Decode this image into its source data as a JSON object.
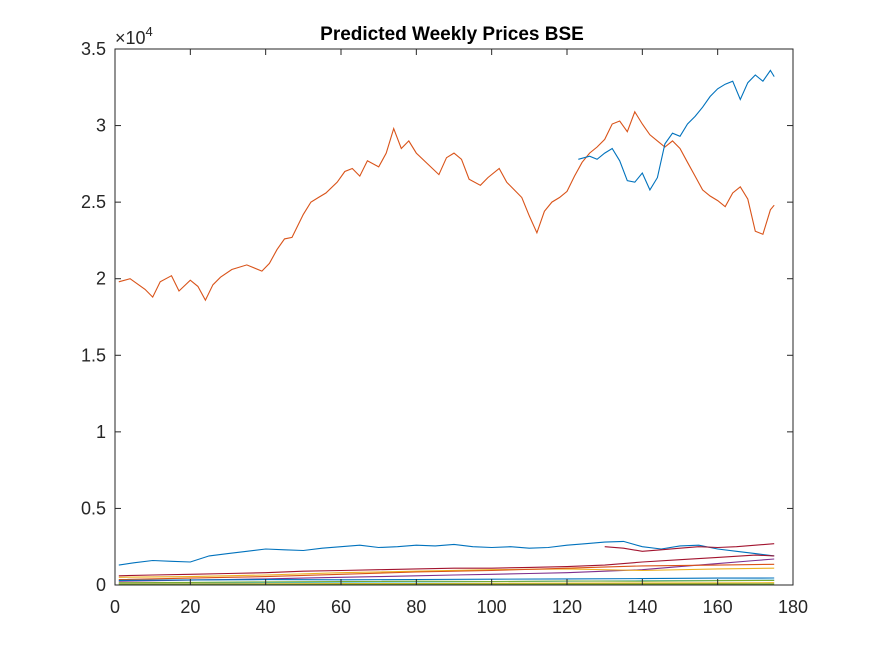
{
  "chart_data": {
    "type": "line",
    "title": "Predicted Weekly Prices BSE",
    "xlabel": "",
    "ylabel": "",
    "xlim": [
      0,
      180
    ],
    "ylim": [
      0,
      35000
    ],
    "x_ticks": [
      0,
      20,
      40,
      60,
      80,
      100,
      120,
      140,
      160,
      180
    ],
    "y_ticks": [
      0,
      5000,
      10000,
      15000,
      20000,
      25000,
      30000,
      35000
    ],
    "y_tick_labels": [
      "0",
      "0.5",
      "1",
      "1.5",
      "2",
      "2.5",
      "3",
      "3.5"
    ],
    "exponent_label": {
      "base": "×10",
      "power": "4"
    },
    "grid": false,
    "legend": "none",
    "series": [
      {
        "color": "#D95319",
        "x": [
          1,
          4,
          8,
          10,
          12,
          15,
          17,
          20,
          22,
          24,
          26,
          28,
          31,
          35,
          39,
          41,
          43,
          45,
          47,
          50,
          52,
          54,
          56,
          59,
          61,
          63,
          65,
          67,
          70,
          72,
          74,
          76,
          78,
          80,
          83,
          86,
          88,
          90,
          92,
          94,
          97,
          99,
          102,
          104,
          106,
          108,
          110,
          112,
          114,
          116,
          118,
          120,
          122,
          124,
          126,
          128,
          130,
          132,
          134,
          136,
          138,
          140,
          142,
          144,
          146,
          148,
          150,
          152,
          154,
          156,
          158,
          160,
          162,
          164,
          166,
          168,
          170,
          172,
          174,
          175
        ],
        "y": [
          19800,
          20000,
          19300,
          18800,
          19800,
          20200,
          19200,
          19900,
          19500,
          18600,
          19600,
          20100,
          20600,
          20900,
          20500,
          21000,
          21900,
          22600,
          22700,
          24200,
          25000,
          25300,
          25600,
          26300,
          27000,
          27200,
          26700,
          27700,
          27300,
          28200,
          29800,
          28500,
          29000,
          28200,
          27500,
          26800,
          27900,
          28200,
          27800,
          26500,
          26100,
          26600,
          27200,
          26300,
          25800,
          25300,
          24100,
          23000,
          24400,
          25000,
          25300,
          25700,
          26700,
          27600,
          28200,
          28600,
          29100,
          30100,
          30300,
          29600,
          30900,
          30100,
          29400,
          29000,
          28600,
          29000,
          28500,
          27600,
          26700,
          25800,
          25400,
          25100,
          24700,
          25600,
          26000,
          25200,
          23100,
          22900,
          24500,
          24800
        ]
      },
      {
        "color": "#0072BD",
        "x": [
          123,
          126,
          128,
          130,
          132,
          134,
          136,
          138,
          140,
          142,
          144,
          146,
          148,
          150,
          152,
          154,
          156,
          158,
          160,
          162,
          164,
          166,
          168,
          170,
          172,
          174,
          175
        ],
        "y": [
          27800,
          28000,
          27800,
          28200,
          28500,
          27700,
          26400,
          26300,
          26900,
          25800,
          26600,
          28800,
          29500,
          29300,
          30100,
          30600,
          31200,
          31900,
          32400,
          32700,
          32900,
          31700,
          32800,
          33300,
          32900,
          33600,
          33200
        ]
      },
      {
        "color": "#0072BD",
        "x": [
          1,
          5,
          10,
          15,
          20,
          25,
          30,
          35,
          40,
          45,
          50,
          55,
          60,
          65,
          70,
          75,
          80,
          85,
          90,
          95,
          100,
          105,
          110,
          115,
          120,
          125,
          130,
          135,
          140,
          145,
          150,
          155,
          160,
          165,
          170,
          175
        ],
        "y": [
          1300,
          1450,
          1600,
          1550,
          1500,
          1900,
          2050,
          2200,
          2350,
          2300,
          2250,
          2400,
          2500,
          2600,
          2450,
          2500,
          2600,
          2550,
          2650,
          2500,
          2450,
          2500,
          2400,
          2450,
          2600,
          2700,
          2800,
          2850,
          2500,
          2350,
          2550,
          2600,
          2350,
          2200,
          2050,
          1900
        ]
      },
      {
        "color": "#A2142F",
        "x": [
          1,
          10,
          20,
          30,
          40,
          50,
          60,
          70,
          80,
          90,
          100,
          110,
          120,
          130,
          140,
          150,
          160,
          170,
          175
        ],
        "y": [
          600,
          650,
          700,
          750,
          800,
          900,
          950,
          1000,
          1050,
          1100,
          1100,
          1150,
          1200,
          1300,
          1500,
          1650,
          1800,
          1950,
          1900
        ]
      },
      {
        "color": "#7E2F8E",
        "x": [
          1,
          10,
          20,
          30,
          40,
          50,
          60,
          70,
          80,
          90,
          100,
          110,
          120,
          130,
          140,
          150,
          160,
          170,
          175
        ],
        "y": [
          250,
          280,
          320,
          360,
          400,
          450,
          500,
          550,
          600,
          650,
          700,
          750,
          800,
          900,
          1000,
          1200,
          1400,
          1600,
          1700
        ]
      },
      {
        "color": "#A2142F",
        "x": [
          130,
          135,
          140,
          145,
          150,
          155,
          160,
          165,
          170,
          175
        ],
        "y": [
          2500,
          2400,
          2200,
          2300,
          2400,
          2500,
          2450,
          2500,
          2600,
          2700
        ]
      },
      {
        "color": "#EDB120",
        "x": [
          1,
          20,
          40,
          60,
          80,
          100,
          120,
          140,
          160,
          175
        ],
        "y": [
          500,
          550,
          650,
          800,
          900,
          1000,
          1050,
          950,
          1050,
          1100
        ]
      },
      {
        "color": "#D95319",
        "x": [
          1,
          20,
          40,
          60,
          80,
          100,
          120,
          140,
          160,
          175
        ],
        "y": [
          350,
          450,
          550,
          700,
          850,
          950,
          1100,
          1250,
          1300,
          1350
        ]
      },
      {
        "color": "#4DBEEE",
        "x": [
          1,
          20,
          40,
          60,
          80,
          100,
          120,
          140,
          160,
          175
        ],
        "y": [
          100,
          120,
          150,
          180,
          200,
          220,
          250,
          280,
          300,
          320
        ]
      },
      {
        "color": "#77AC30",
        "x": [
          1,
          20,
          40,
          60,
          80,
          100,
          120,
          140,
          160,
          175
        ],
        "y": [
          150,
          170,
          200,
          220,
          250,
          230,
          260,
          250,
          280,
          300
        ]
      },
      {
        "color": "#0072BD",
        "x": [
          1,
          20,
          40,
          60,
          80,
          100,
          120,
          140,
          160,
          175
        ],
        "y": [
          300,
          330,
          350,
          340,
          360,
          380,
          400,
          420,
          450,
          460
        ]
      },
      {
        "color": "#EDB120",
        "x": [
          1,
          20,
          40,
          60,
          80,
          100,
          120,
          140,
          160,
          175
        ],
        "y": [
          60,
          70,
          80,
          90,
          100,
          110,
          120,
          130,
          140,
          150
        ]
      },
      {
        "color": "#77AC30",
        "x": [
          1,
          20,
          40,
          60,
          80,
          100,
          120,
          140,
          160,
          175
        ],
        "y": [
          30,
          35,
          40,
          45,
          50,
          55,
          60,
          65,
          70,
          75
        ]
      }
    ]
  }
}
